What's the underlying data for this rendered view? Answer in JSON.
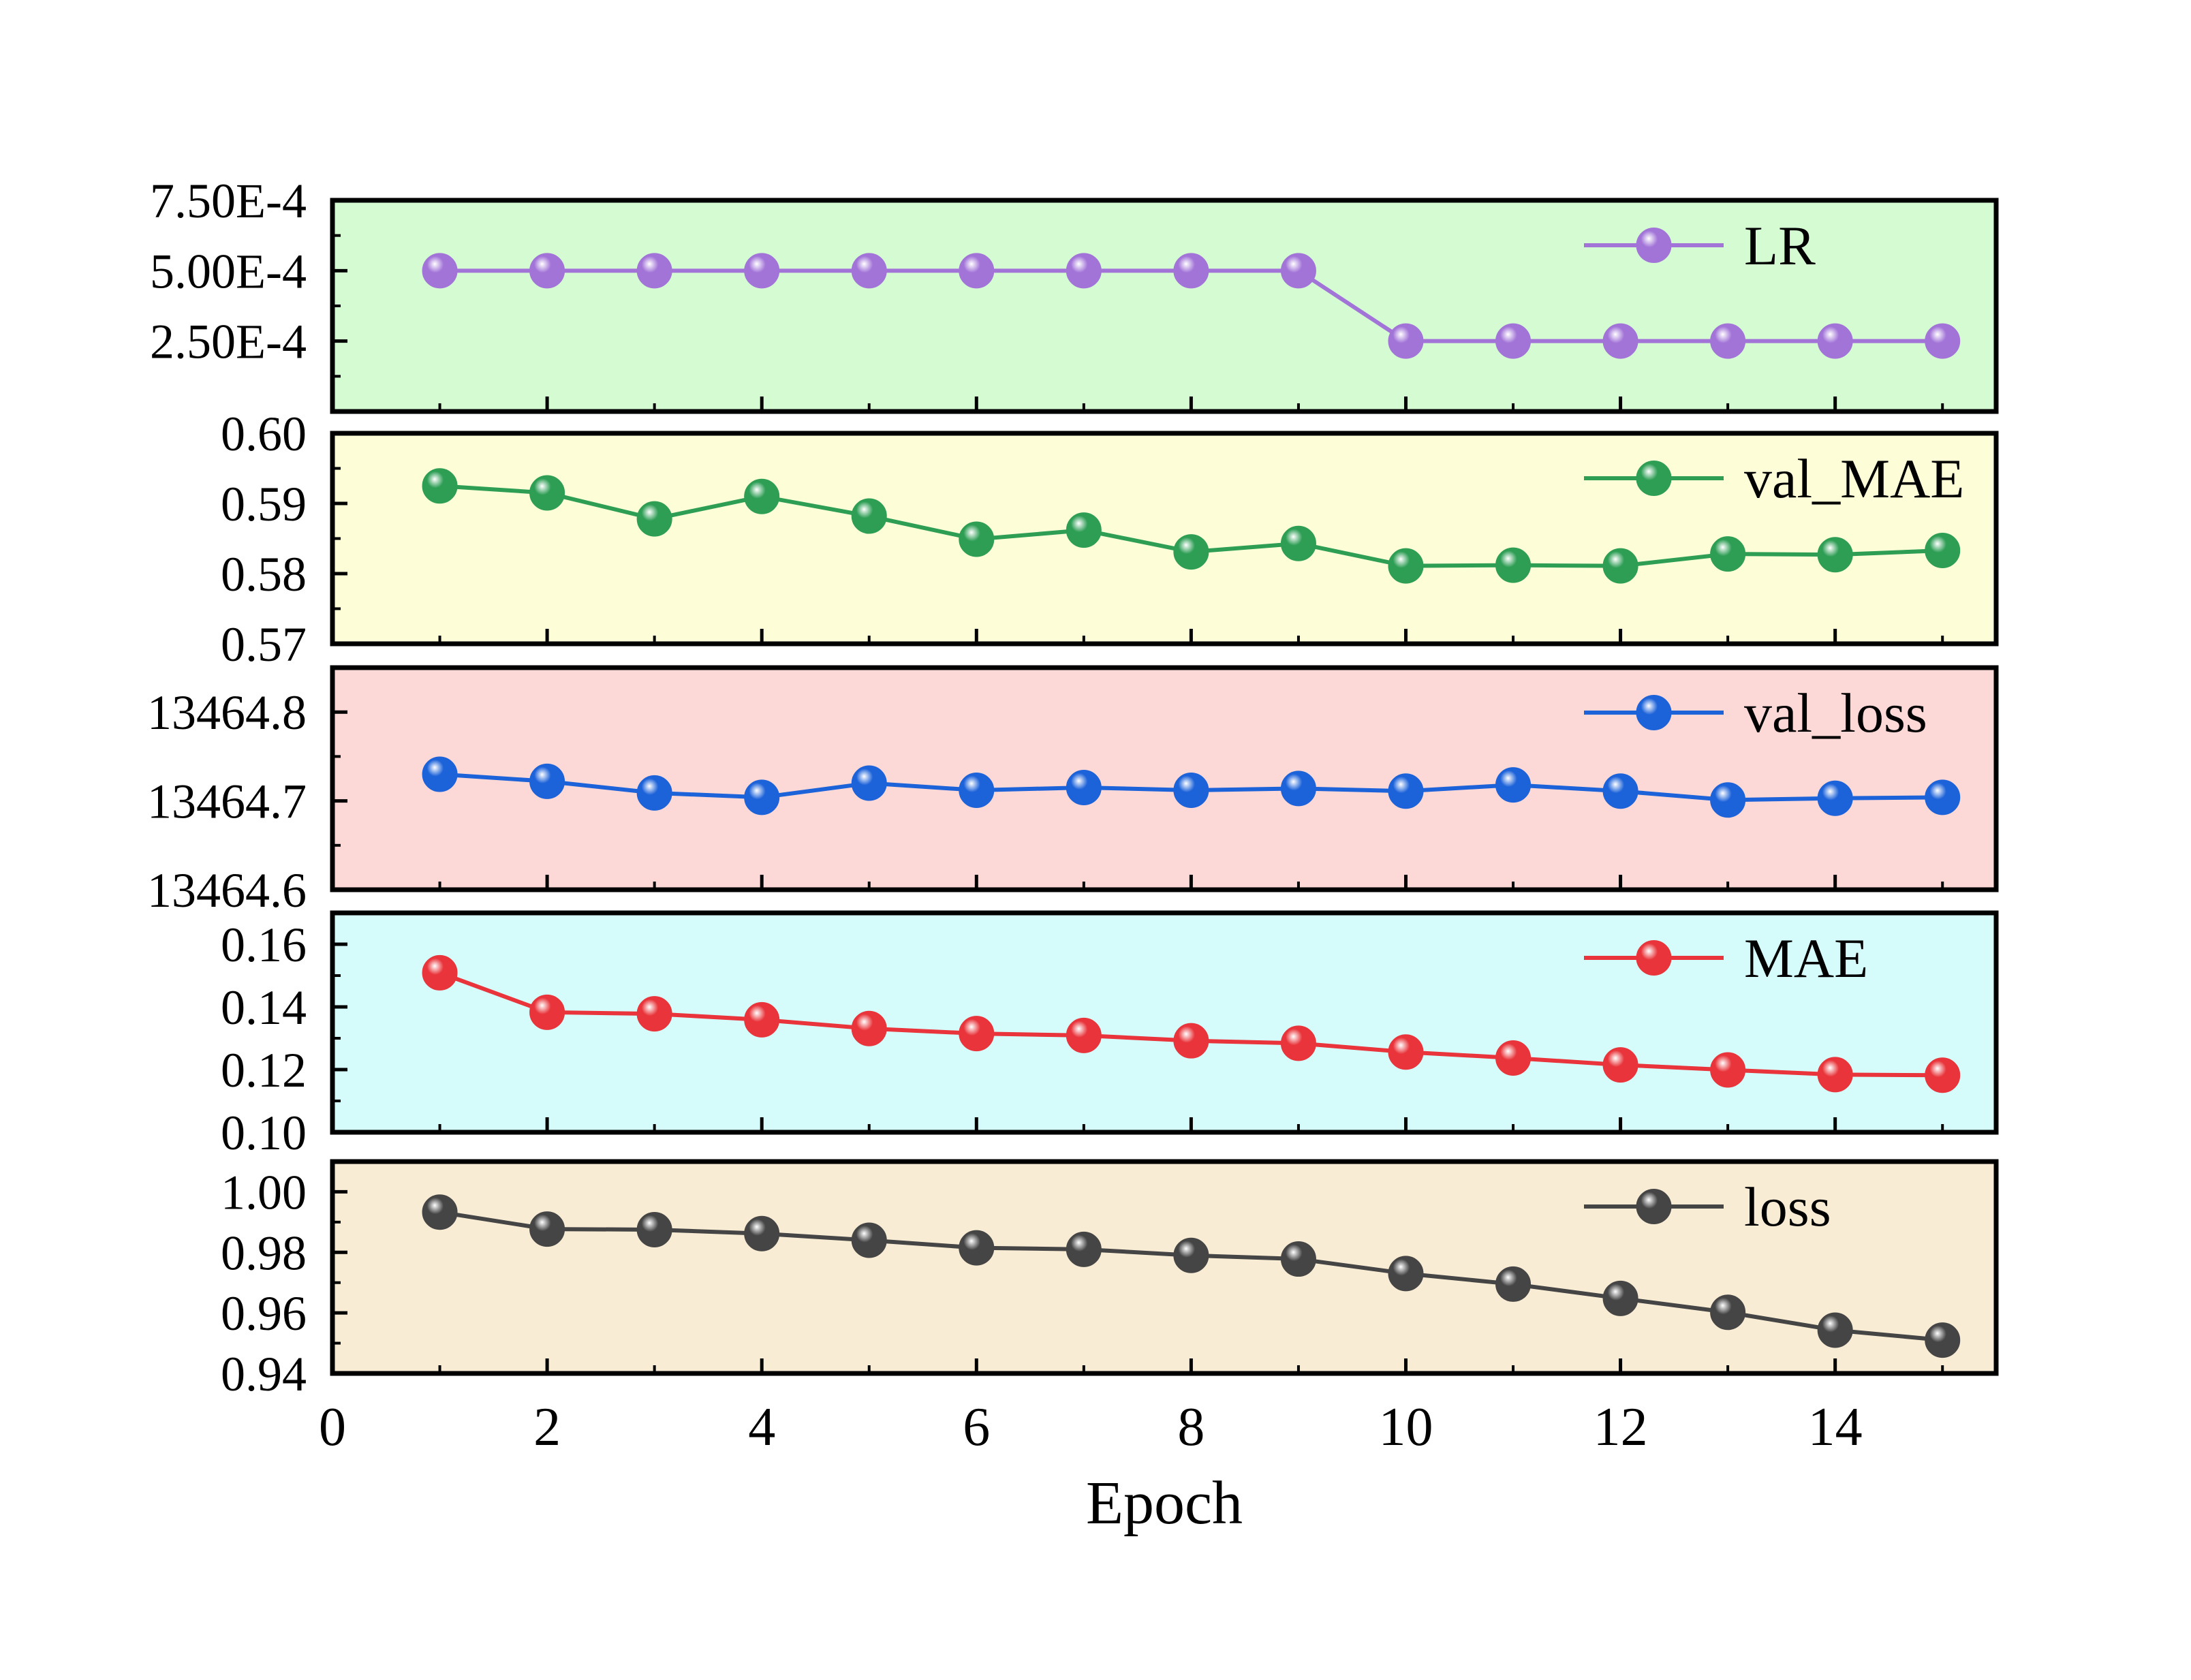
{
  "chart_data": {
    "type": "line",
    "layout": "stacked-panels",
    "shared_x": {
      "label": "Epoch",
      "range": [
        0,
        15.5
      ],
      "ticks": [
        0,
        2,
        4,
        6,
        8,
        10,
        12,
        14
      ],
      "minor_step": 1,
      "x": [
        1,
        2,
        3,
        4,
        5,
        6,
        7,
        8,
        9,
        10,
        11,
        12,
        13,
        14,
        15
      ]
    },
    "panels": [
      {
        "name": "LR",
        "background": "#d5fbd3",
        "color": "#a274d8",
        "ylim": [
          0.0,
          0.00075
        ],
        "ticks": [
          0.00025,
          0.0005,
          0.00075
        ],
        "tick_labels": [
          "2.50E-4",
          "5.00E-4",
          "7.50E-4"
        ],
        "values": [
          0.0005,
          0.0005,
          0.0005,
          0.0005,
          0.0005,
          0.0005,
          0.0005,
          0.0005,
          0.0005,
          0.00025,
          0.00025,
          0.00025,
          0.00025,
          0.00025,
          0.00025
        ]
      },
      {
        "name": "val_MAE",
        "background": "#fdfdd7",
        "color": "#2e9e55",
        "ylim": [
          0.57,
          0.6
        ],
        "ticks": [
          0.57,
          0.58,
          0.59,
          0.6
        ],
        "tick_labels": [
          "0.57",
          "0.58",
          "0.59",
          "0.60"
        ],
        "values": [
          0.5925,
          0.5915,
          0.5878,
          0.591,
          0.5882,
          0.5849,
          0.5862,
          0.5831,
          0.5843,
          0.5811,
          0.5812,
          0.5811,
          0.5828,
          0.5827,
          0.5833
        ]
      },
      {
        "name": "val_loss",
        "background": "#fcd8d6",
        "color": "#1c62d9",
        "ylim": [
          13464.6,
          13464.85
        ],
        "ticks": [
          13464.6,
          13464.7,
          13464.8
        ],
        "tick_labels": [
          "13464.6",
          "13464.7",
          "13464.8"
        ],
        "values": [
          13464.73,
          13464.722,
          13464.709,
          13464.704,
          13464.72,
          13464.712,
          13464.715,
          13464.712,
          13464.714,
          13464.711,
          13464.718,
          13464.711,
          13464.701,
          13464.703,
          13464.704
        ]
      },
      {
        "name": "MAE",
        "background": "#d5fcfb",
        "color": "#e8343a",
        "ylim": [
          0.1,
          0.17
        ],
        "ticks": [
          0.1,
          0.12,
          0.14,
          0.16
        ],
        "tick_labels": [
          "0.10",
          "0.12",
          "0.14",
          "0.16"
        ],
        "values": [
          0.1509,
          0.1383,
          0.1378,
          0.1359,
          0.1331,
          0.1315,
          0.1309,
          0.1292,
          0.1284,
          0.1256,
          0.1237,
          0.1215,
          0.1199,
          0.1184,
          0.1182
        ]
      },
      {
        "name": "loss",
        "background": "#f9ecd4",
        "color": "#454545",
        "ylim": [
          0.94,
          1.01
        ],
        "ticks": [
          0.94,
          0.96,
          0.98,
          1.0
        ],
        "tick_labels": [
          "0.94",
          "0.96",
          "0.98",
          "1.00"
        ],
        "values": [
          0.9933,
          0.9877,
          0.9875,
          0.9862,
          0.984,
          0.9815,
          0.981,
          0.979,
          0.9778,
          0.973,
          0.9695,
          0.9648,
          0.9602,
          0.9543,
          0.951
        ]
      }
    ]
  }
}
